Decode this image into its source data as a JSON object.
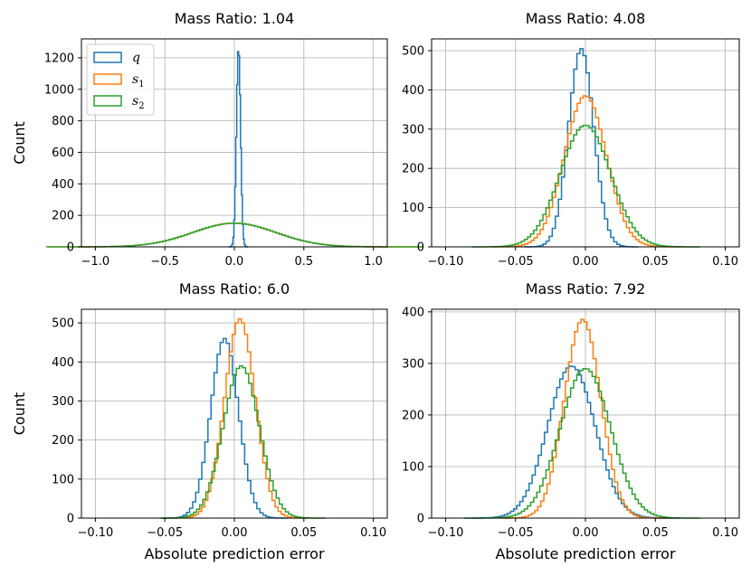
{
  "series_meta": [
    {
      "key": "q",
      "label": "q",
      "sub": "",
      "color": "#1f77b4"
    },
    {
      "key": "s1",
      "label": "s",
      "sub": "1",
      "color": "#ff7f0e"
    },
    {
      "key": "s2",
      "label": "s",
      "sub": "2",
      "color": "#2ca02c"
    }
  ],
  "chart_data": [
    {
      "type": "histogram",
      "title": "Mass Ratio: 1.04",
      "xlabel": "",
      "ylabel": "Count",
      "xlim": [
        -1.1,
        1.1
      ],
      "ylim": [
        0,
        1320
      ],
      "xticks": [
        -1.0,
        -0.5,
        0.0,
        0.5,
        1.0
      ],
      "xtick_labels": [
        "−1.0",
        "−0.5",
        "0.0",
        "0.5",
        "1.0"
      ],
      "yticks": [
        0,
        200,
        400,
        600,
        800,
        1000,
        1200
      ],
      "grid": true,
      "legend": "top-left",
      "series": [
        {
          "name": "q",
          "mu": 0.03,
          "sigma": 0.015,
          "peak": 1260
        },
        {
          "name": "s1",
          "mu": 0.0,
          "sigma": 0.3,
          "peak": 150
        },
        {
          "name": "s2",
          "mu": 0.0,
          "sigma": 0.3,
          "peak": 150
        }
      ]
    },
    {
      "type": "histogram",
      "title": "Mass Ratio: 4.08",
      "xlabel": "",
      "ylabel": "",
      "xlim": [
        -0.11,
        0.11
      ],
      "ylim": [
        0,
        530
      ],
      "xticks": [
        -0.1,
        -0.05,
        0.0,
        0.05,
        0.1
      ],
      "xtick_labels": [
        "−0.10",
        "−0.05",
        "0.00",
        "0.05",
        "0.10"
      ],
      "yticks": [
        0,
        100,
        200,
        300,
        400,
        500
      ],
      "grid": true,
      "series": [
        {
          "name": "q",
          "mu": -0.003,
          "sigma": 0.009,
          "peak": 505
        },
        {
          "name": "s1",
          "mu": 0.0,
          "sigma": 0.015,
          "peak": 385
        },
        {
          "name": "s2",
          "mu": 0.0,
          "sigma": 0.018,
          "peak": 310
        }
      ]
    },
    {
      "type": "histogram",
      "title": "Mass Ratio: 6.0",
      "xlabel": "Absolute prediction error",
      "ylabel": "Count",
      "xlim": [
        -0.11,
        0.11
      ],
      "ylim": [
        0,
        535
      ],
      "xticks": [
        -0.1,
        -0.05,
        0.0,
        0.05,
        0.1
      ],
      "xtick_labels": [
        "−0.10",
        "−0.05",
        "0.00",
        "0.05",
        "0.10"
      ],
      "yticks": [
        0,
        100,
        200,
        300,
        400,
        500
      ],
      "grid": true,
      "series": [
        {
          "name": "q",
          "mu": -0.007,
          "sigma": 0.01,
          "peak": 460
        },
        {
          "name": "s1",
          "mu": 0.004,
          "sigma": 0.011,
          "peak": 510
        },
        {
          "name": "s2",
          "mu": 0.005,
          "sigma": 0.013,
          "peak": 390
        }
      ]
    },
    {
      "type": "histogram",
      "title": "Mass Ratio: 7.92",
      "xlabel": "Absolute prediction error",
      "ylabel": "",
      "xlim": [
        -0.11,
        0.11
      ],
      "ylim": [
        0,
        405
      ],
      "xticks": [
        -0.1,
        -0.05,
        0.0,
        0.05,
        0.1
      ],
      "xtick_labels": [
        "−0.10",
        "−0.05",
        "0.00",
        "0.05",
        "0.10"
      ],
      "yticks": [
        0,
        100,
        200,
        300,
        400
      ],
      "grid": true,
      "series": [
        {
          "name": "q",
          "mu": -0.01,
          "sigma": 0.017,
          "peak": 295
        },
        {
          "name": "s1",
          "mu": -0.002,
          "sigma": 0.013,
          "peak": 385
        },
        {
          "name": "s2",
          "mu": 0.0,
          "sigma": 0.018,
          "peak": 290
        }
      ]
    }
  ]
}
